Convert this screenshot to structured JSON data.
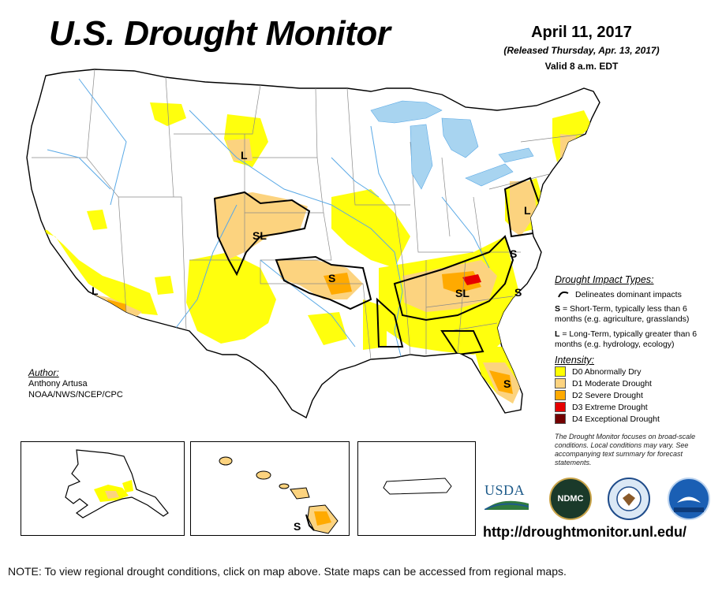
{
  "title": "U.S. Drought Monitor",
  "date": {
    "main": "April 11, 2017",
    "released": "(Released Thursday, Apr. 13, 2017)",
    "valid": "Valid 8 a.m. EDT"
  },
  "map_labels": {
    "L": "L",
    "S": "S",
    "SL": "SL"
  },
  "legend": {
    "impact_title": "Drought Impact Types:",
    "delineates": "Delineates dominant impacts",
    "short_term_key": "S",
    "short_term": "= Short-Term, typically less than 6 months (e.g. agriculture, grasslands)",
    "long_term_key": "L",
    "long_term": "= Long-Term, typically greater than 6 months (e.g. hydrology, ecology)",
    "intensity_title": "Intensity:",
    "intensity": [
      {
        "label": "D0 Abnormally Dry",
        "color": "#ffff00"
      },
      {
        "label": "D1 Moderate Drought",
        "color": "#fcd37f"
      },
      {
        "label": "D2 Severe Drought",
        "color": "#ffaa00"
      },
      {
        "label": "D3 Extreme Drought",
        "color": "#e60000"
      },
      {
        "label": "D4 Exceptional Drought",
        "color": "#730000"
      }
    ],
    "focus_note": "The Drought Monitor focuses on broad-scale conditions. Local conditions may vary. See accompanying text summary for forecast statements."
  },
  "author": {
    "title": "Author:",
    "name": "Anthony Artusa",
    "org": "NOAA/NWS/NCEP/CPC"
  },
  "logos": {
    "usda": "USDA",
    "ndmc": "NDMC"
  },
  "url": "http://droughtmonitor.unl.edu/",
  "note": "NOTE: To view regional drought conditions, click on map above. State maps can be accessed from regional maps.",
  "colors": {
    "water": "#a8d4f0",
    "river": "#5aa9e6",
    "state_line": "#777777",
    "boundary": "#000000"
  }
}
